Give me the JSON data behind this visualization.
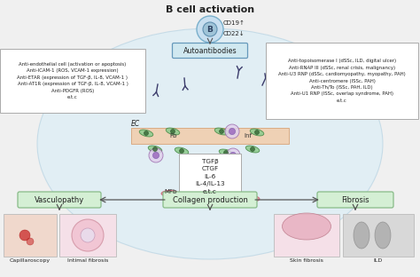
{
  "title": "B cell activation",
  "bg_color": "#f0f0f0",
  "main_circle_color": "#d8eef8",
  "left_box_text": "Anti-endothelial cell (activation or apoptosis)\nAnti-ICAM-1 (ROS, VCAM-1 expression)\nAnti-ETAR (expression of TGF-β, IL-8, VCAM-1 )\nAnti-AT1R (expression of TGF-β, IL-8, VCAM-1 )\nAnti-PDGFR (ROS)\ne.t.c",
  "right_box_text": "Anti-topoisomerase I (dSSc, ILD, digital ulcer)\nAnti-RNAP III (dSSc, renal crisis, malignancy)\nAnti-U3 RNP (dSSc, cardiomyopathy, myopathy, PAH)\nAnti-centromere (lSSc, PAH)\nAnti-Th/To (lSSc, PAH, ILD)\nAnti-U1 RNP (lSSc, overlap syndrome, PAH)\ne.t.c",
  "autoantibodies_text": "Autoantibodies",
  "cd19_text": "CD19↑",
  "cd22_text": "CD22↓",
  "ec_text": "EC",
  "fb_text": "Fb",
  "inf_text": "Inf",
  "mfb_text": "MFb",
  "center_box_text": "TGFβ\nCTGF\nIL-6\nIL-4/IL-13\ne.t.c",
  "vasculopathy_text": "Vasculopathy",
  "collagen_text": "Collagen production",
  "fibrosis_text": "Fibrosis",
  "capillaroscopy_text": "Capillaroscopy",
  "intimal_text": "Intimal fibrosis",
  "skin_text": "Skin fibrosis",
  "ild_text": "ILD",
  "box_facecolor": "#ffffff",
  "box_edgecolor": "#aaaaaa",
  "label_box_facecolor": "#d4efd4",
  "label_box_edgecolor": "#88bb88",
  "autoantibodies_facecolor": "#d0e8f0",
  "autoantibodies_edgecolor": "#6699bb",
  "arrow_color": "#555555",
  "text_color": "#222222",
  "bcell_outer": "#c8dff0",
  "bcell_inner": "#a0c4d8",
  "vessel_color": "#f5c8a0",
  "vessel_edge": "#d4996a",
  "mfb_color": "#e88898",
  "mfb_edge": "#c05060",
  "fb_color": "#90cc90",
  "fb_edge": "#448844",
  "immune_color": "#e0d0ec",
  "immune_edge": "#9966aa",
  "immune_nucleus": "#a070c0"
}
